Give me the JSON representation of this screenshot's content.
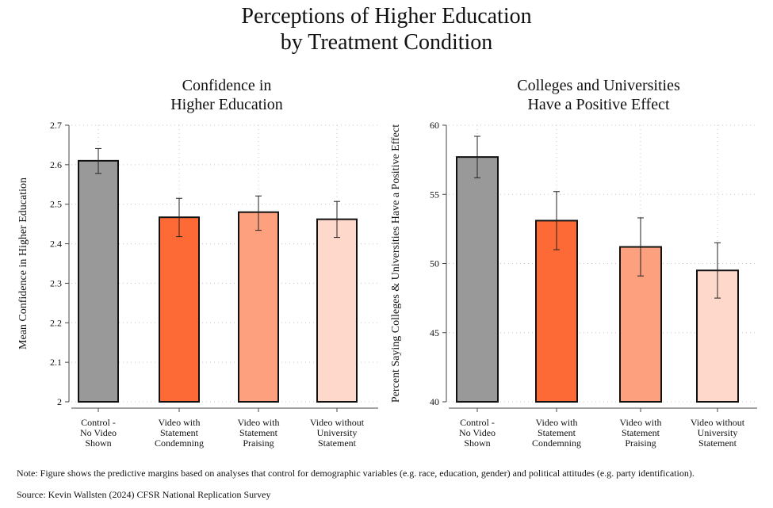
{
  "page_title": [
    "Perceptions of Higher Education",
    "by Treatment Condition"
  ],
  "note": "Note: Figure shows the predictive margins based on analyses that control for demographic variables (e.g. race, education, gender) and political attitudes (e.g. party identification).",
  "source": "Source: Kevin Wallsten (2024) CFSR National Replication Survey",
  "chart_data": [
    {
      "type": "bar",
      "title": [
        "Confidence in",
        "Higher Education"
      ],
      "ylabel": "Mean Confidence in Higher Education",
      "xlabel": "",
      "ylim": [
        2,
        2.7
      ],
      "yticks": [
        "2",
        "2.1",
        "2.2",
        "2.3",
        "2.4",
        "2.5",
        "2.6",
        "2.7"
      ],
      "categories": [
        [
          "Control -",
          "No Video",
          "Shown"
        ],
        [
          "Video with",
          "Statement",
          "Condemning"
        ],
        [
          "Video with",
          "Statement",
          "Praising"
        ],
        [
          "Video without",
          "University",
          "Statement"
        ]
      ],
      "values": [
        2.61,
        2.467,
        2.48,
        2.462
      ],
      "ci_low": [
        2.578,
        2.418,
        2.434,
        2.416
      ],
      "ci_high": [
        2.641,
        2.515,
        2.521,
        2.507
      ],
      "colors": [
        "#999999",
        "#fd6a35",
        "#fca07d",
        "#fdd8cb"
      ],
      "grid": true
    },
    {
      "type": "bar",
      "title": [
        "Colleges and Universities",
        "Have a Positive Effect"
      ],
      "ylabel": "Percent Saying Colleges & Universities Have a Positive Effect",
      "xlabel": "",
      "ylim": [
        40,
        60
      ],
      "yticks": [
        "40",
        "45",
        "50",
        "55",
        "60"
      ],
      "categories": [
        [
          "Control -",
          "No Video",
          "Shown"
        ],
        [
          "Video with",
          "Statement",
          "Condemning"
        ],
        [
          "Video with",
          "Statement",
          "Praising"
        ],
        [
          "Video without",
          "University",
          "Statement"
        ]
      ],
      "values": [
        57.7,
        53.1,
        51.2,
        49.5
      ],
      "ci_low": [
        56.2,
        51.0,
        49.1,
        47.5
      ],
      "ci_high": [
        59.2,
        55.2,
        53.3,
        51.5
      ],
      "colors": [
        "#999999",
        "#fd6a35",
        "#fca07d",
        "#fdd8cb"
      ],
      "grid": true
    }
  ]
}
